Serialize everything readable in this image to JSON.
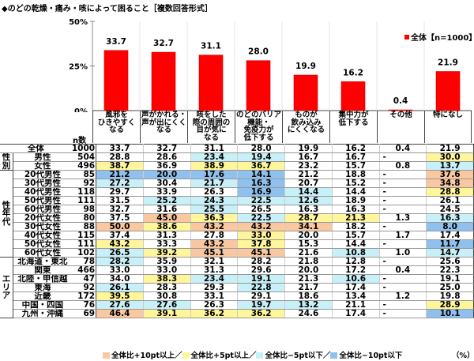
{
  "title": "◆のどの乾燥・痛み・咳によって困ること［複数回答形式］",
  "chart_data": {
    "type": "bar",
    "title": "◆のどの乾燥・痛み・咳によって困ること［複数回答形式］",
    "categories": [
      "風邪を\nひきやすく\nなる",
      "声がかれる・\n声が出にくく\nなる",
      "咳をした\n際の周囲の\n目が気に\nなる",
      "のどのバリア\n機能・\n免疫力が\n低下する",
      "ものが\n飲み込み\nにくくなる",
      "集中力が\n低下する",
      "その他",
      "特になし"
    ],
    "series": [
      {
        "name": "全体【n=1000】",
        "values": [
          33.7,
          32.7,
          31.1,
          28.0,
          19.9,
          16.2,
          0.4,
          21.9
        ]
      }
    ],
    "yticks": [
      "0%",
      "25%",
      "50%"
    ],
    "ylim": [
      0,
      50
    ],
    "legend_position": "top-right",
    "bar_color": "#ff0000"
  },
  "table": {
    "n_header": "n数",
    "total": {
      "label": "全体",
      "n": "1000",
      "values": [
        "33.7",
        "32.7",
        "31.1",
        "28.0",
        "19.9",
        "16.2",
        "0.4",
        "21.9"
      ]
    },
    "groups": [
      {
        "label": "性\n別",
        "rows": [
          {
            "label": "男性",
            "n": "504",
            "values": [
              "28.8",
              "28.6",
              "23.4",
              "19.4",
              "16.7",
              "16.7",
              "-",
              "30.0"
            ]
          },
          {
            "label": "女性",
            "n": "496",
            "values": [
              "38.7",
              "36.9",
              "38.9",
              "36.7",
              "23.2",
              "15.7",
              "0.8",
              "13.7"
            ]
          }
        ]
      },
      {
        "label": "性\n年\n代",
        "rows": [
          {
            "label": "20代男性",
            "n": "85",
            "values": [
              "21.2",
              "20.0",
              "17.6",
              "14.1",
              "21.2",
              "18.8",
              "-",
              "37.6"
            ]
          },
          {
            "label": "30代男性",
            "n": "92",
            "values": [
              "27.2",
              "30.4",
              "21.7",
              "16.3",
              "20.7",
              "15.2",
              "-",
              "34.8"
            ]
          },
          {
            "label": "40代男性",
            "n": "118",
            "values": [
              "29.7",
              "33.9",
              "26.3",
              "16.9",
              "14.4",
              "14.4",
              "-",
              "28.8"
            ]
          },
          {
            "label": "50代男性",
            "n": "111",
            "values": [
              "31.5",
              "25.2",
              "24.3",
              "22.5",
              "12.6",
              "18.9",
              "-",
              "26.1"
            ]
          },
          {
            "label": "60代男性",
            "n": "98",
            "values": [
              "32.7",
              "31.6",
              "25.5",
              "26.5",
              "16.3",
              "16.3",
              "-",
              "24.5"
            ]
          },
          {
            "label": "20代女性",
            "n": "80",
            "values": [
              "37.5",
              "45.0",
              "36.3",
              "22.5",
              "28.7",
              "21.3",
              "1.3",
              "16.3"
            ]
          },
          {
            "label": "30代女性",
            "n": "88",
            "values": [
              "50.0",
              "38.6",
              "43.2",
              "43.2",
              "34.1",
              "18.2",
              "-",
              "8.0"
            ]
          },
          {
            "label": "40代女性",
            "n": "115",
            "values": [
              "37.4",
              "31.3",
              "27.8",
              "33.0",
              "20.0",
              "15.7",
              "1.7",
              "17.4"
            ]
          },
          {
            "label": "50代女性",
            "n": "111",
            "values": [
              "43.2",
              "33.3",
              "43.2",
              "37.8",
              "15.3",
              "14.4",
              "-",
              "11.7"
            ]
          },
          {
            "label": "60代女性",
            "n": "102",
            "values": [
              "26.5",
              "39.2",
              "45.1",
              "45.1",
              "21.6",
              "10.8",
              "1.0",
              "14.7"
            ]
          }
        ]
      },
      {
        "label": "エ\nリ\nア",
        "rows": [
          {
            "label": "北海道・東北",
            "n": "78",
            "values": [
              "28.2",
              "35.9",
              "32.1",
              "28.2",
              "21.8",
              "12.8",
              "-",
              "25.6"
            ]
          },
          {
            "label": "関東",
            "n": "466",
            "values": [
              "33.0",
              "33.0",
              "31.3",
              "29.6",
              "20.0",
              "17.2",
              "0.4",
              "22.3"
            ]
          },
          {
            "label": "北陸・甲信越",
            "n": "47",
            "values": [
              "34.0",
              "38.3",
              "23.4",
              "19.1",
              "21.3",
              "10.6",
              "-",
              "19.1"
            ]
          },
          {
            "label": "東海",
            "n": "92",
            "values": [
              "26.1",
              "28.3",
              "29.3",
              "22.8",
              "21.7",
              "17.4",
              "-",
              "25.0"
            ]
          },
          {
            "label": "近畿",
            "n": "172",
            "values": [
              "39.5",
              "30.8",
              "33.1",
              "29.1",
              "18.6",
              "13.4",
              "1.2",
              "19.8"
            ]
          },
          {
            "label": "中国・四国",
            "n": "76",
            "values": [
              "27.6",
              "27.6",
              "26.3",
              "19.7",
              "13.2",
              "21.1",
              "-",
              "28.9"
            ]
          },
          {
            "label": "九州・沖縄",
            "n": "69",
            "values": [
              "46.4",
              "39.1",
              "36.2",
              "36.2",
              "24.6",
              "17.4",
              "-",
              "10.1"
            ]
          }
        ]
      }
    ]
  },
  "legend_key": [
    {
      "label": "全体比+10pt以上／",
      "color": "#f9c8a0",
      "threshold": 10
    },
    {
      "label": "全体比+5pt以上／",
      "color": "#fff59a",
      "threshold": 5
    },
    {
      "label": "全体比−5pt以下／",
      "color": "#c8f0f8",
      "threshold": -5
    },
    {
      "label": "全体比−10pt以下",
      "color": "#8fc0ee",
      "threshold": -10
    }
  ],
  "unit": "（%）"
}
